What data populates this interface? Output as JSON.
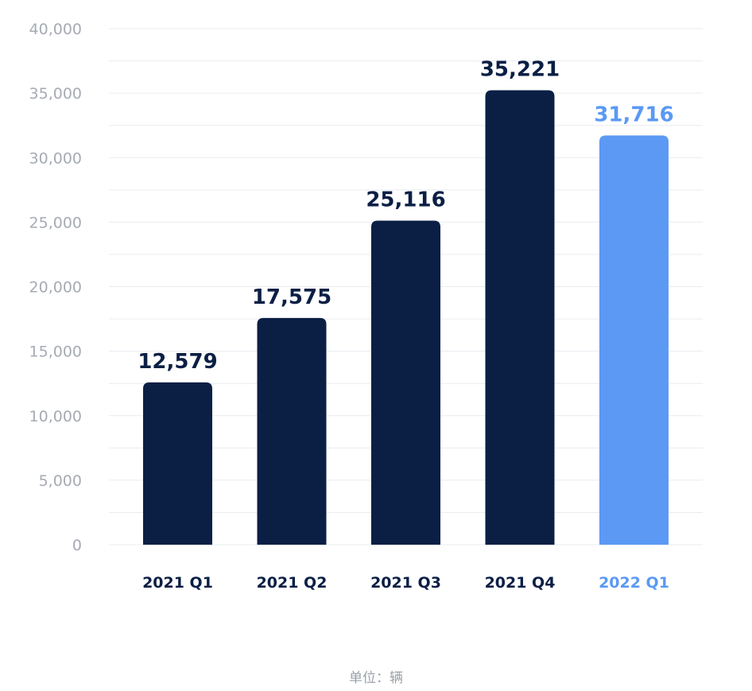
{
  "chart_data": {
    "type": "bar",
    "categories": [
      "2021 Q1",
      "2021 Q2",
      "2021 Q3",
      "2021 Q4",
      "2022 Q1"
    ],
    "values": [
      12579,
      17575,
      25116,
      35221,
      31716
    ],
    "value_labels": [
      "12,579",
      "17,575",
      "25,116",
      "35,221",
      "31,716"
    ],
    "yticks": [
      0,
      5000,
      10000,
      15000,
      20000,
      25000,
      30000,
      35000,
      40000
    ],
    "ytick_labels": [
      "0",
      "5,000",
      "10,000",
      "15,000",
      "20,000",
      "25,000",
      "30,000",
      "35,000",
      "40,000"
    ],
    "ylim": [
      0,
      40000
    ],
    "minor_grid_step": 2500,
    "grid": true,
    "title": "",
    "xlabel": "",
    "ylabel": "",
    "unit_note": "单位：辆",
    "colors": {
      "bar_default": "#0b1f45",
      "bar_highlight": "#5b99f4",
      "label_default": "#0b1f45",
      "label_highlight": "#5b99f4",
      "axis_text": "#a6abb3",
      "grid": "#e9ecf0"
    },
    "highlight_index": 4
  }
}
